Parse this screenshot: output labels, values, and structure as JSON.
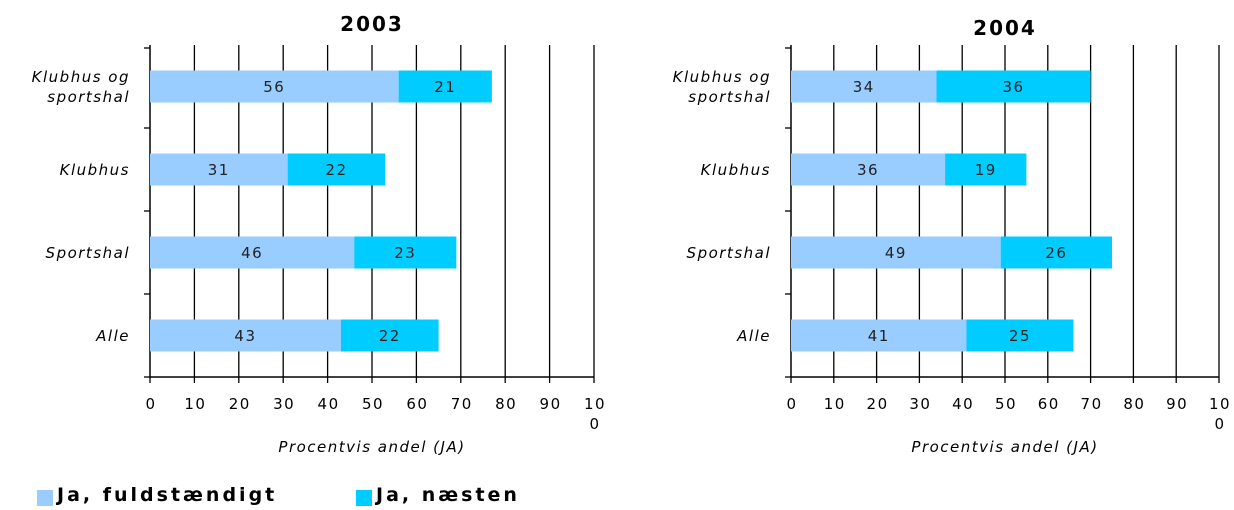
{
  "chart_data": [
    {
      "type": "bar",
      "orientation": "horizontal",
      "stacked": true,
      "title": "2003",
      "categories": [
        "Klubhus og sportshal",
        "Klubhus",
        "Sportshal",
        "Alle"
      ],
      "series": [
        {
          "name": "Ja, fuldstændigt",
          "color": "#99ccff",
          "values": [
            56,
            31,
            46,
            43
          ]
        },
        {
          "name": "Ja, næsten",
          "color": "#00ccff",
          "values": [
            21,
            22,
            23,
            22
          ]
        }
      ],
      "xlabel": "Procentvis andel (JA)",
      "xlim": [
        0,
        100
      ],
      "xticks": [
        0,
        10,
        20,
        30,
        40,
        50,
        60,
        70,
        80,
        90,
        100
      ],
      "grid": true
    },
    {
      "type": "bar",
      "orientation": "horizontal",
      "stacked": true,
      "title": "2004",
      "categories": [
        "Klubhus og sportshal",
        "Klubhus",
        "Sportshal",
        "Alle"
      ],
      "series": [
        {
          "color": "#99ccff",
          "values": [
            34,
            36,
            49,
            41
          ]
        },
        {
          "color": "#00ccff",
          "values": [
            36,
            19,
            26,
            25
          ]
        }
      ],
      "xlabel": "Procentvis andel (JA)",
      "xlim": [
        0,
        100
      ],
      "xticks": [
        0,
        10,
        20,
        30,
        40,
        50,
        60,
        70,
        80,
        90,
        100
      ],
      "grid": true
    }
  ]
}
